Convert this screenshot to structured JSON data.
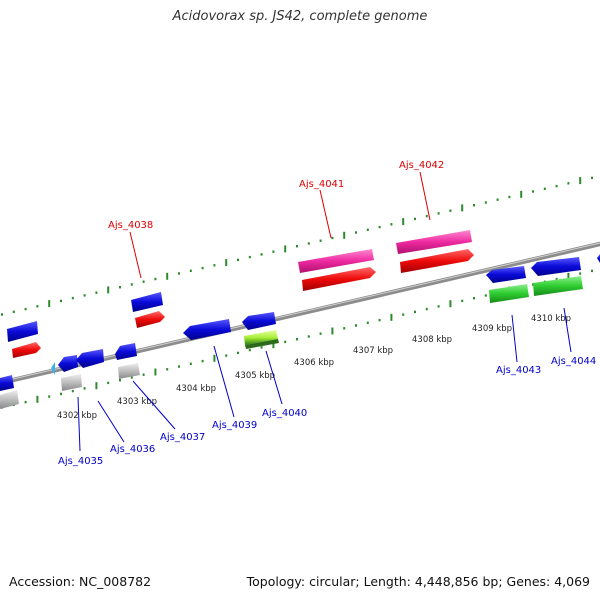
{
  "title": "Acidovorax sp. JS42, complete genome",
  "footer": {
    "accession": "Accession: NC_008782",
    "summary": "Topology: circular; Length: 4,448,856 bp; Genes: 4,069"
  },
  "colors": {
    "backbone": "#8c8c8c",
    "tick": "#2d8a2d",
    "red_label": "#dd0000",
    "blue_label": "#0000cc",
    "cds_blue": "#0a0ad8",
    "cds_red": "#ee0a0a",
    "cds_magenta": "#ee2aa0",
    "cds_green": "#2ecc30",
    "cds_grey": "#bdbdbd",
    "cds_lime": "#aaf03a"
  },
  "kbp_labels": [
    "4302 kbp",
    "4303 kbp",
    "4304 kbp",
    "4305 kbp",
    "4306 kbp",
    "4307 kbp",
    "4308 kbp",
    "4309 kbp",
    "4310 kbp"
  ],
  "gene_labels": {
    "Ajs_4035": "Ajs_4035",
    "Ajs_4036": "Ajs_4036",
    "Ajs_4037": "Ajs_4037",
    "Ajs_4038": "Ajs_4038",
    "Ajs_4039": "Ajs_4039",
    "Ajs_4040": "Ajs_4040",
    "Ajs_4041": "Ajs_4041",
    "Ajs_4042": "Ajs_4042",
    "Ajs_4043": "Ajs_4043",
    "Ajs_4044": "Ajs_4044"
  }
}
